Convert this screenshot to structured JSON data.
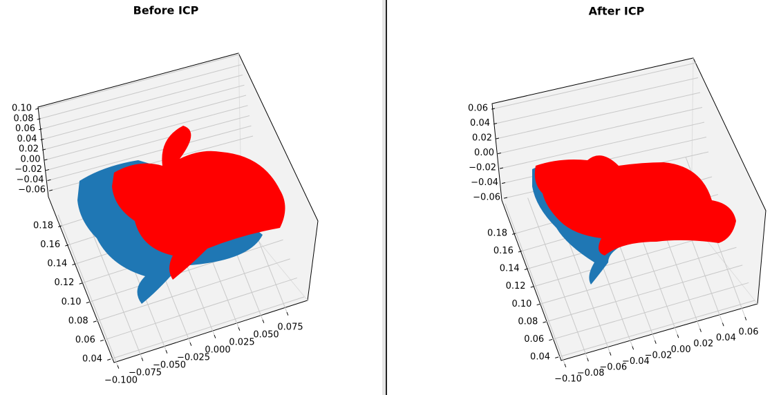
{
  "chart_data": [
    {
      "type": "scatter3d",
      "title": "Before ICP",
      "xlim": [
        -0.1,
        0.075
      ],
      "xticks": [
        {
          "value": -0.1,
          "label": "−0.100"
        },
        {
          "value": -0.075,
          "label": "−0.075"
        },
        {
          "value": -0.05,
          "label": "−0.050"
        },
        {
          "value": -0.025,
          "label": "−0.025"
        },
        {
          "value": 0,
          "label": "0.000"
        },
        {
          "value": 0.025,
          "label": "0.025"
        },
        {
          "value": 0.05,
          "label": "0.050"
        },
        {
          "value": 0.075,
          "label": "0.075"
        }
      ],
      "ylim": [
        0.04,
        0.18
      ],
      "yticks": [
        {
          "value": 0.04,
          "label": "0.04"
        },
        {
          "value": 0.06,
          "label": "0.06"
        },
        {
          "value": 0.08,
          "label": "0.08"
        },
        {
          "value": 0.1,
          "label": "0.10"
        },
        {
          "value": 0.12,
          "label": "0.12"
        },
        {
          "value": 0.14,
          "label": "0.14"
        },
        {
          "value": 0.16,
          "label": "0.16"
        },
        {
          "value": 0.18,
          "label": "0.18"
        }
      ],
      "zlim": [
        -0.06,
        0.1
      ],
      "zticks": [
        {
          "value": -0.06,
          "label": "−0.06"
        },
        {
          "value": -0.04,
          "label": "−0.04"
        },
        {
          "value": -0.02,
          "label": "−0.02"
        },
        {
          "value": 0,
          "label": "0.00"
        },
        {
          "value": 0.02,
          "label": "0.02"
        },
        {
          "value": 0.04,
          "label": "0.04"
        },
        {
          "value": 0.06,
          "label": "0.06"
        },
        {
          "value": 0.08,
          "label": "0.08"
        },
        {
          "value": 0.1,
          "label": "0.10"
        }
      ]
    },
    {
      "type": "scatter3d",
      "title": "After ICP",
      "xlim": [
        -0.1,
        0.06
      ],
      "xticks": [
        {
          "value": -0.1,
          "label": "−0.10"
        },
        {
          "value": -0.08,
          "label": "−0.08"
        },
        {
          "value": -0.06,
          "label": "−0.06"
        },
        {
          "value": -0.04,
          "label": "−0.04"
        },
        {
          "value": -0.02,
          "label": "−0.02"
        },
        {
          "value": 0,
          "label": "0.00"
        },
        {
          "value": 0.02,
          "label": "0.02"
        },
        {
          "value": 0.04,
          "label": "0.04"
        },
        {
          "value": 0.06,
          "label": "0.06"
        }
      ],
      "ylim": [
        0.04,
        0.18
      ],
      "yticks": [
        {
          "value": 0.04,
          "label": "0.04"
        },
        {
          "value": 0.06,
          "label": "0.06"
        },
        {
          "value": 0.08,
          "label": "0.08"
        },
        {
          "value": 0.1,
          "label": "0.10"
        },
        {
          "value": 0.12,
          "label": "0.12"
        },
        {
          "value": 0.14,
          "label": "0.14"
        },
        {
          "value": 0.16,
          "label": "0.16"
        },
        {
          "value": 0.18,
          "label": "0.18"
        }
      ],
      "zlim": [
        -0.06,
        0.06
      ],
      "zticks": [
        {
          "value": -0.06,
          "label": "−0.06"
        },
        {
          "value": -0.04,
          "label": "−0.04"
        },
        {
          "value": -0.02,
          "label": "−0.02"
        },
        {
          "value": 0,
          "label": "0.00"
        },
        {
          "value": 0.02,
          "label": "0.02"
        },
        {
          "value": 0.04,
          "label": "0.04"
        },
        {
          "value": 0.06,
          "label": "0.06"
        }
      ]
    }
  ]
}
